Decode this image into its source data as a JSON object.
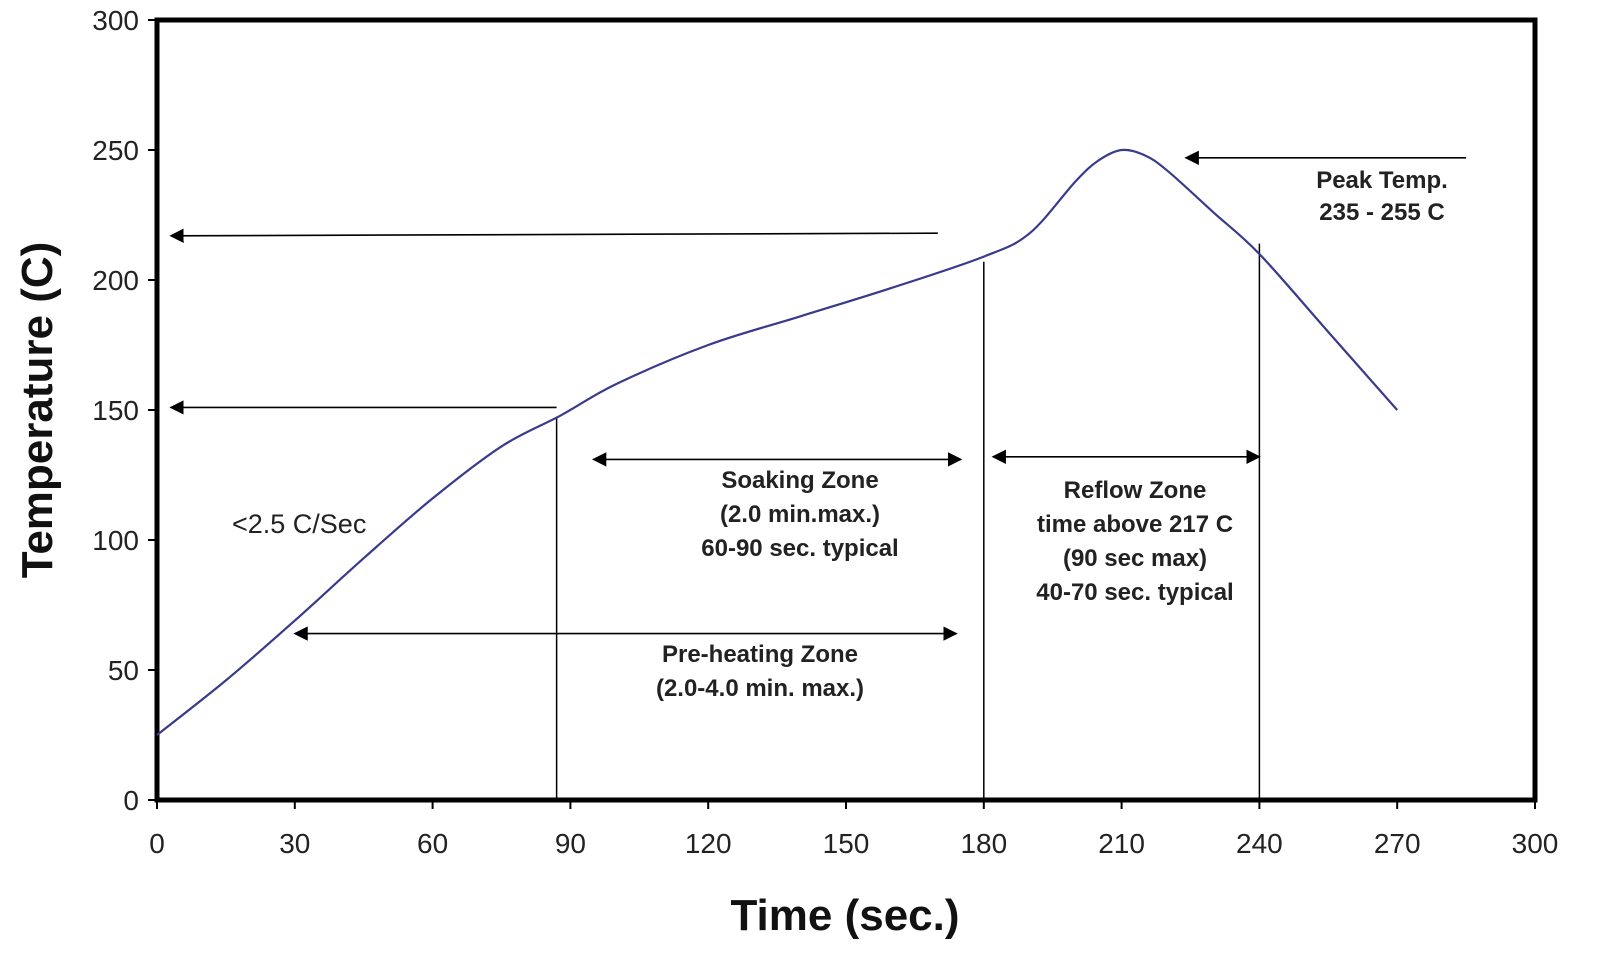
{
  "chart_data": {
    "type": "line",
    "xlabel": "Time (sec.)",
    "ylabel": "Temperature (C)",
    "xlim": [
      0,
      300
    ],
    "ylim": [
      0,
      300
    ],
    "xticks": [
      0,
      30,
      60,
      90,
      120,
      150,
      180,
      210,
      240,
      270,
      300
    ],
    "yticks": [
      0,
      50,
      100,
      150,
      200,
      250,
      300
    ],
    "grid": false,
    "colors": {
      "curve": "#3a3a8c",
      "axis": "#000000",
      "annotation": "#000000"
    },
    "series": [
      {
        "x": [
          0,
          15,
          30,
          45,
          60,
          75,
          88,
          100,
          120,
          140,
          160,
          180,
          190,
          200,
          205,
          210,
          215,
          220,
          230,
          240,
          255,
          270
        ],
        "y": [
          25,
          46,
          69,
          93,
          116,
          136,
          148,
          160,
          175,
          186,
          197,
          209,
          218,
          238,
          246,
          250,
          248,
          242,
          226,
          210,
          180,
          150
        ]
      }
    ],
    "annotations": [
      {
        "kind": "arrow",
        "x1": 170,
        "y1": 218,
        "x2": 3,
        "y2": 217
      },
      {
        "kind": "arrow",
        "x1": 87,
        "y1": 151,
        "x2": 3,
        "y2": 151
      },
      {
        "kind": "arrow",
        "x1": 285,
        "y1": 247,
        "x2": 224,
        "y2": 247
      },
      {
        "kind": "double-arrow",
        "x1": 95,
        "x2": 175,
        "y": 131
      },
      {
        "kind": "double-arrow",
        "x1": 182,
        "x2": 240,
        "y": 132
      },
      {
        "kind": "double-arrow",
        "x1": 30,
        "x2": 174,
        "y": 64
      },
      {
        "kind": "vline",
        "x": 87,
        "y1": 0,
        "y2": 147
      },
      {
        "kind": "vline",
        "x": 180,
        "y1": 0,
        "y2": 207
      },
      {
        "kind": "vline",
        "x": 240,
        "y1": 0,
        "y2": 214
      }
    ],
    "labels": {
      "rate": "<2.5 C/Sec",
      "peak": [
        "Peak Temp.",
        "235 - 255 C"
      ],
      "soaking": [
        "Soaking Zone",
        "(2.0 min.max.)",
        "60-90 sec. typical"
      ],
      "reflow": [
        "Reflow Zone",
        "time above 217 C",
        "(90 sec max)",
        "40-70 sec. typical"
      ],
      "preheat": [
        "Pre-heating Zone",
        "(2.0-4.0 min. max.)"
      ]
    }
  }
}
